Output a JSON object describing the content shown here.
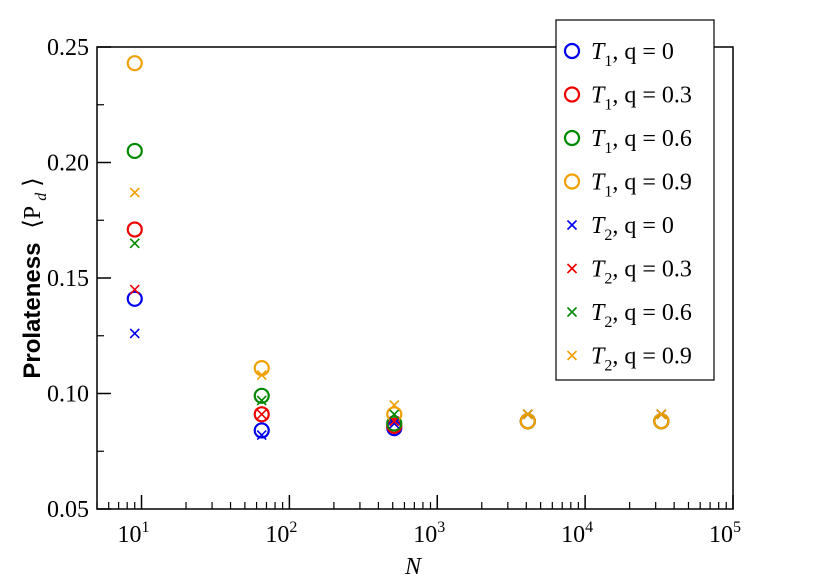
{
  "chart_data": {
    "type": "scatter",
    "xscale": "log",
    "xlim": [
      5,
      100000
    ],
    "ylim": [
      0.05,
      0.25
    ],
    "xlabel": "N",
    "ylabel_text": "Prolateness",
    "ylabel_symbol": "⟨P",
    "ylabel_sub": "d",
    "ylabel_close": "⟩",
    "x_ticks": [
      {
        "value": 10,
        "base": "10",
        "exp": "1"
      },
      {
        "value": 100,
        "base": "10",
        "exp": "2"
      },
      {
        "value": 1000,
        "base": "10",
        "exp": "3"
      },
      {
        "value": 10000,
        "base": "10",
        "exp": "4"
      },
      {
        "value": 100000,
        "base": "10",
        "exp": "5"
      }
    ],
    "y_ticks": [
      {
        "value": 0.05,
        "label": "0.05"
      },
      {
        "value": 0.1,
        "label": "0.10"
      },
      {
        "value": 0.15,
        "label": "0.15"
      },
      {
        "value": 0.2,
        "label": "0.20"
      },
      {
        "value": 0.25,
        "label": "0.25"
      }
    ],
    "legend_position": "top-right",
    "series": [
      {
        "name": "T1, q = 0",
        "var": "T",
        "sub": "1",
        "rest": ", q = 0",
        "marker": "circle",
        "color": "#0000ee",
        "x": [
          9,
          65,
          512,
          4096,
          32768
        ],
        "y": [
          0.141,
          0.084,
          0.085,
          0.088,
          0.088
        ]
      },
      {
        "name": "T1, q = 0.3",
        "var": "T",
        "sub": "1",
        "rest": ", q = 0.3",
        "marker": "circle",
        "color": "#ee0000",
        "x": [
          9,
          65,
          512,
          4096,
          32768
        ],
        "y": [
          0.171,
          0.091,
          0.086,
          0.088,
          0.088
        ]
      },
      {
        "name": "T1, q = 0.6",
        "var": "T",
        "sub": "1",
        "rest": ", q = 0.6",
        "marker": "circle",
        "color": "#008800",
        "x": [
          9,
          65,
          512,
          4096,
          32768
        ],
        "y": [
          0.205,
          0.099,
          0.087,
          0.088,
          0.088
        ]
      },
      {
        "name": "T1, q = 0.9",
        "var": "T",
        "sub": "1",
        "rest": ", q = 0.9",
        "marker": "circle",
        "color": "#f0a000",
        "x": [
          9,
          65,
          512,
          4096,
          32768
        ],
        "y": [
          0.243,
          0.111,
          0.091,
          0.088,
          0.088
        ]
      },
      {
        "name": "T2, q = 0",
        "var": "T",
        "sub": "2",
        "rest": ", q = 0",
        "marker": "x",
        "color": "#0000ee",
        "x": [
          9,
          65,
          512,
          4096,
          32768
        ],
        "y": [
          0.126,
          0.082,
          0.087,
          0.091,
          0.091
        ]
      },
      {
        "name": "T2, q = 0.3",
        "var": "T",
        "sub": "2",
        "rest": ", q = 0.3",
        "marker": "x",
        "color": "#ee0000",
        "x": [
          9,
          65,
          512,
          4096,
          32768
        ],
        "y": [
          0.145,
          0.091,
          0.088,
          0.091,
          0.091
        ]
      },
      {
        "name": "T2, q = 0.6",
        "var": "T",
        "sub": "2",
        "rest": ", q = 0.6",
        "marker": "x",
        "color": "#008800",
        "x": [
          9,
          65,
          512,
          4096,
          32768
        ],
        "y": [
          0.165,
          0.097,
          0.091,
          0.091,
          0.091
        ]
      },
      {
        "name": "T2, q = 0.9",
        "var": "T",
        "sub": "2",
        "rest": ", q = 0.9",
        "marker": "x",
        "color": "#f0a000",
        "x": [
          9,
          65,
          512,
          4096,
          32768
        ],
        "y": [
          0.187,
          0.108,
          0.095,
          0.091,
          0.091
        ]
      }
    ]
  }
}
